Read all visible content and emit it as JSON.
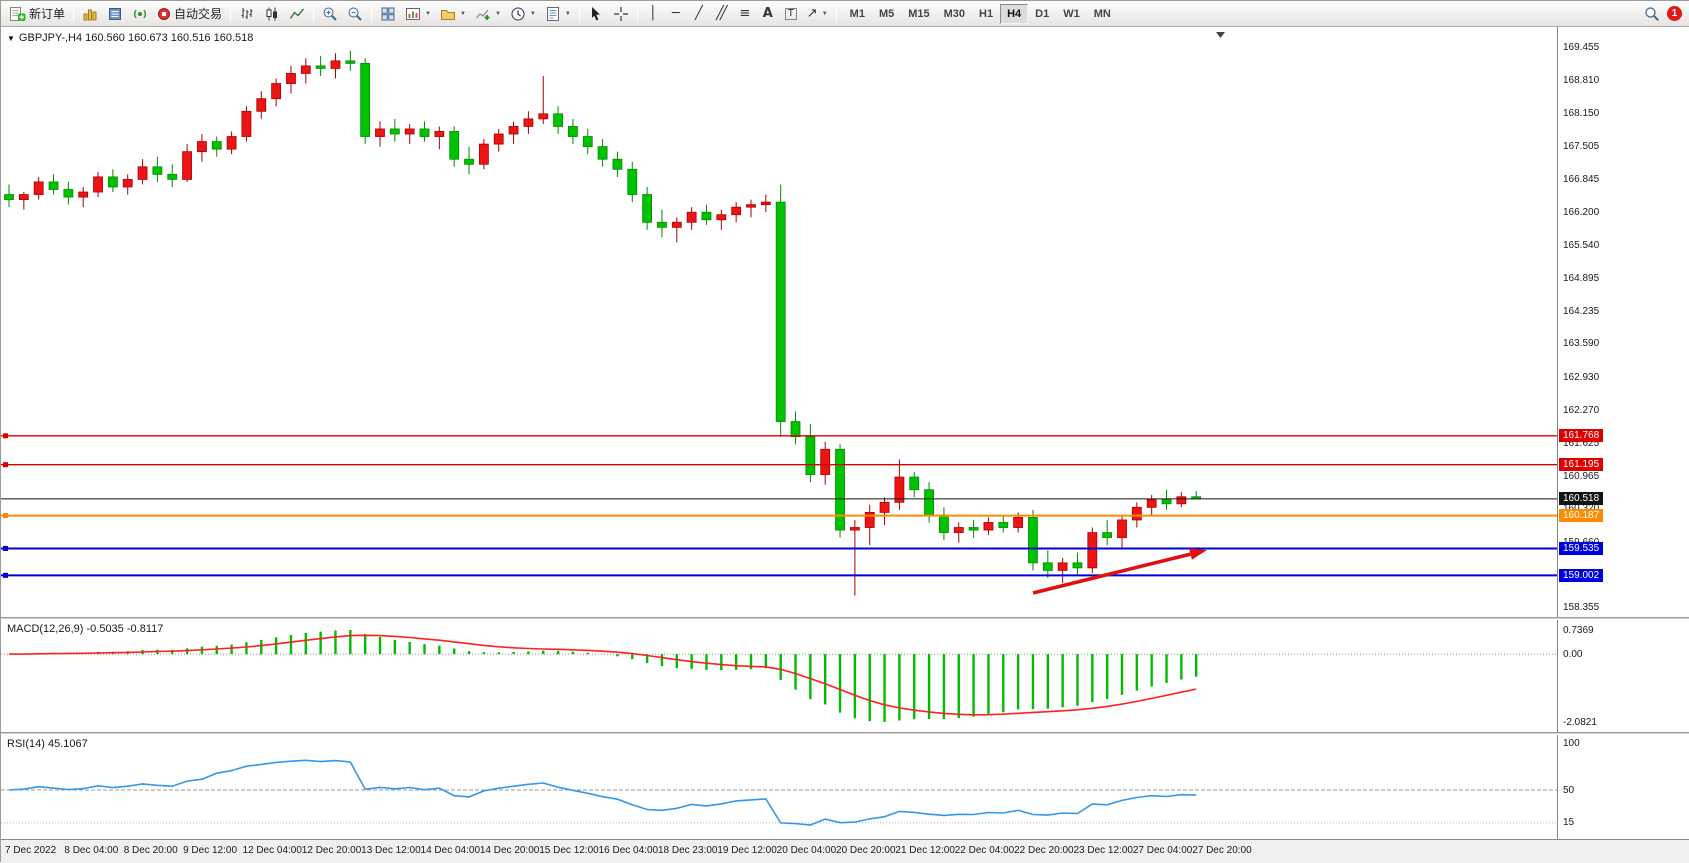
{
  "icons": {
    "marker": "▼",
    "caret": "▼",
    "vline": "│",
    "hline": "─",
    "trendline": "╱",
    "channel": "╱╱",
    "fibonacci": "≡",
    "text_tool": "A",
    "label_tool": "T",
    "arrows_tool": "↗"
  },
  "toolbar": {
    "new_order_label": "新订单",
    "auto_trading_label": "自动交易",
    "timeframes": [
      "M1",
      "M5",
      "M15",
      "M30",
      "H1",
      "H4",
      "D1",
      "W1",
      "MN"
    ],
    "active_timeframe": "H4",
    "notification_badge": "1"
  },
  "chart": {
    "title": "GBPJPY-,H4  160.560 160.673 160.516 160.518",
    "price_axis_labels": [
      "169.455",
      "168.810",
      "168.150",
      "167.505",
      "166.845",
      "166.200",
      "165.540",
      "164.895",
      "164.235",
      "163.590",
      "162.930",
      "162.270",
      "161.625",
      "160.965",
      "160.320",
      "159.660",
      "159.015",
      "158.355"
    ],
    "levels": [
      {
        "price": 161.768,
        "label": "161.768",
        "color": "#dd0000",
        "width": 1.4,
        "handle": true
      },
      {
        "price": 161.195,
        "label": "161.195",
        "color": "#dd0000",
        "width": 1.4,
        "handle": true
      },
      {
        "price": 160.518,
        "label": "160.518",
        "color": "#141414",
        "width": 1,
        "handle": false
      },
      {
        "price": 160.187,
        "label": "160.187",
        "color": "#ff8c00",
        "width": 2,
        "handle": true
      },
      {
        "price": 159.535,
        "label": "159.535",
        "color": "#0000dd",
        "width": 2,
        "handle": true
      },
      {
        "price": 159.002,
        "label": "159.002",
        "color": "#0000dd",
        "width": 2,
        "handle": true
      }
    ],
    "colors": {
      "bull": "#ee1414",
      "bear": "#00c300",
      "bull_edge": "#a80000",
      "bear_edge": "#008a00",
      "arrow": "#e01010",
      "badge_text": "#ffffff"
    }
  },
  "chart_data": {
    "type": "candlestick",
    "symbol": "GBPJPY-",
    "timeframe": "H4",
    "current_ohlc": {
      "open": "160.560",
      "high": "160.673",
      "low": "160.516",
      "close": "160.518"
    },
    "ohlc": [
      [
        166.55,
        166.75,
        166.3,
        166.45
      ],
      [
        166.45,
        166.6,
        166.25,
        166.55
      ],
      [
        166.55,
        166.9,
        166.45,
        166.8
      ],
      [
        166.8,
        166.95,
        166.55,
        166.65
      ],
      [
        166.65,
        166.8,
        166.35,
        166.5
      ],
      [
        166.5,
        166.7,
        166.3,
        166.6
      ],
      [
        166.6,
        167.0,
        166.5,
        166.9
      ],
      [
        166.9,
        167.05,
        166.6,
        166.7
      ],
      [
        166.7,
        166.95,
        166.55,
        166.85
      ],
      [
        166.85,
        167.25,
        166.75,
        167.1
      ],
      [
        167.1,
        167.3,
        166.8,
        166.95
      ],
      [
        166.95,
        167.15,
        166.7,
        166.85
      ],
      [
        166.85,
        167.55,
        166.8,
        167.4
      ],
      [
        167.4,
        167.75,
        167.2,
        167.6
      ],
      [
        167.6,
        167.7,
        167.3,
        167.45
      ],
      [
        167.45,
        167.8,
        167.35,
        167.7
      ],
      [
        167.7,
        168.3,
        167.6,
        168.2
      ],
      [
        168.2,
        168.6,
        168.05,
        168.45
      ],
      [
        168.45,
        168.85,
        168.3,
        168.75
      ],
      [
        168.75,
        169.1,
        168.55,
        168.95
      ],
      [
        168.95,
        169.25,
        168.75,
        169.1
      ],
      [
        169.1,
        169.3,
        168.9,
        169.05
      ],
      [
        169.05,
        169.35,
        168.85,
        169.2
      ],
      [
        169.2,
        169.4,
        169.0,
        169.15
      ],
      [
        169.15,
        169.25,
        167.55,
        167.7
      ],
      [
        167.7,
        168.0,
        167.5,
        167.85
      ],
      [
        167.85,
        168.05,
        167.6,
        167.75
      ],
      [
        167.75,
        167.95,
        167.55,
        167.85
      ],
      [
        167.85,
        168.0,
        167.6,
        167.7
      ],
      [
        167.7,
        167.9,
        167.45,
        167.8
      ],
      [
        167.8,
        167.9,
        167.1,
        167.25
      ],
      [
        167.25,
        167.5,
        166.95,
        167.15
      ],
      [
        167.15,
        167.65,
        167.05,
        167.55
      ],
      [
        167.55,
        167.85,
        167.4,
        167.75
      ],
      [
        167.75,
        168.0,
        167.55,
        167.9
      ],
      [
        167.9,
        168.2,
        167.75,
        168.05
      ],
      [
        168.05,
        168.9,
        167.95,
        168.15
      ],
      [
        168.15,
        168.3,
        167.75,
        167.9
      ],
      [
        167.9,
        168.05,
        167.55,
        167.7
      ],
      [
        167.7,
        167.85,
        167.35,
        167.5
      ],
      [
        167.5,
        167.65,
        167.1,
        167.25
      ],
      [
        167.25,
        167.4,
        166.9,
        167.05
      ],
      [
        167.05,
        167.2,
        166.4,
        166.55
      ],
      [
        166.55,
        166.7,
        165.85,
        166.0
      ],
      [
        166.0,
        166.25,
        165.7,
        165.9
      ],
      [
        165.9,
        166.1,
        165.6,
        166.0
      ],
      [
        166.0,
        166.3,
        165.85,
        166.2
      ],
      [
        166.2,
        166.35,
        165.95,
        166.05
      ],
      [
        166.05,
        166.25,
        165.85,
        166.15
      ],
      [
        166.15,
        166.4,
        166.0,
        166.3
      ],
      [
        166.3,
        166.45,
        166.1,
        166.35
      ],
      [
        166.35,
        166.55,
        166.2,
        166.4
      ],
      [
        166.4,
        166.75,
        161.75,
        162.05
      ],
      [
        162.05,
        162.25,
        161.6,
        161.75
      ],
      [
        161.75,
        162.0,
        160.85,
        161.0
      ],
      [
        161.0,
        161.65,
        160.8,
        161.5
      ],
      [
        161.5,
        161.6,
        159.75,
        159.9
      ],
      [
        159.9,
        160.1,
        158.6,
        159.95
      ],
      [
        159.95,
        160.4,
        159.6,
        160.25
      ],
      [
        160.25,
        160.55,
        160.0,
        160.45
      ],
      [
        160.45,
        161.3,
        160.3,
        160.95
      ],
      [
        160.95,
        161.05,
        160.55,
        160.7
      ],
      [
        160.7,
        160.85,
        160.05,
        160.2
      ],
      [
        160.2,
        160.35,
        159.7,
        159.85
      ],
      [
        159.85,
        160.05,
        159.65,
        159.95
      ],
      [
        159.95,
        160.1,
        159.75,
        159.9
      ],
      [
        159.9,
        160.15,
        159.8,
        160.05
      ],
      [
        160.05,
        160.2,
        159.85,
        159.95
      ],
      [
        159.95,
        160.25,
        159.85,
        160.15
      ],
      [
        160.15,
        160.3,
        159.1,
        159.25
      ],
      [
        159.25,
        159.5,
        158.95,
        159.1
      ],
      [
        159.1,
        159.35,
        158.85,
        159.25
      ],
      [
        159.25,
        159.45,
        159.0,
        159.15
      ],
      [
        159.15,
        159.95,
        159.05,
        159.85
      ],
      [
        159.85,
        160.1,
        159.6,
        159.75
      ],
      [
        159.75,
        160.2,
        159.55,
        160.1
      ],
      [
        160.1,
        160.45,
        159.95,
        160.35
      ],
      [
        160.35,
        160.6,
        160.2,
        160.5
      ],
      [
        160.5,
        160.7,
        160.3,
        160.42
      ],
      [
        160.42,
        160.65,
        160.35,
        160.56
      ],
      [
        160.56,
        160.673,
        160.516,
        160.518
      ]
    ],
    "time_labels": [
      "7 Dec 2022",
      "8 Dec 04:00",
      "8 Dec 20:00",
      "9 Dec 12:00",
      "12 Dec 04:00",
      "12 Dec 20:00",
      "13 Dec 12:00",
      "14 Dec 04:00",
      "14 Dec 20:00",
      "15 Dec 12:00",
      "16 Dec 04:00",
      "18 Dec 23:00",
      "19 Dec 12:00",
      "20 Dec 04:00",
      "20 Dec 20:00",
      "21 Dec 12:00",
      "22 Dec 04:00",
      "22 Dec 20:00",
      "23 Dec 12:00",
      "27 Dec 04:00",
      "27 Dec 20:00"
    ],
    "label_step": 4,
    "macd": {
      "label": "MACD(12,26,9)",
      "value_main": "-0.5035",
      "value_signal": "-0.8117",
      "scale_max": "0.7369",
      "scale_zero": "0.00",
      "scale_min": "-2.0821",
      "fast": 12,
      "slow": 26,
      "signal": 9,
      "hist_color": "#00bb00",
      "signal_color": "#ff2020"
    },
    "rsi": {
      "label": "RSI(14)",
      "value": "45.1067",
      "period": 14,
      "scale_labels": [
        "100",
        "50",
        "15"
      ],
      "line_color": "#3498ea"
    }
  }
}
